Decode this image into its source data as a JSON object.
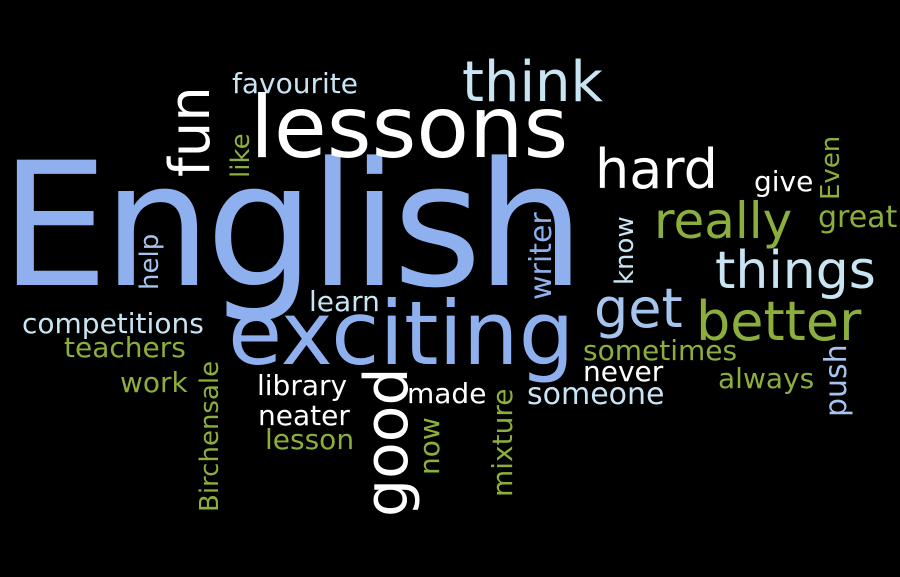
{
  "word_cloud": {
    "colors": {
      "background": "#000000",
      "blue": "#8fb0ee",
      "white": "#ffffff",
      "green": "#8cae3c",
      "ice": "#c9e4f2",
      "lite": "#a6c4ee"
    },
    "words": {
      "english": "English",
      "lessons": "lessons",
      "think": "think",
      "favourite": "favourite",
      "fun": "fun",
      "like": "like",
      "hard": "hard",
      "give": "give",
      "even": "Even",
      "know": "know",
      "really": "really",
      "great": "great",
      "things": "things",
      "get": "get",
      "better": "better",
      "help": "help",
      "writer": "writer",
      "learn": "learn",
      "exciting": "exciting",
      "competitions": "competitions",
      "teachers": "teachers",
      "birchensale": "Birchensale",
      "work": "work",
      "sometimes": "sometimes",
      "never": "never",
      "always": "always",
      "push": "push",
      "library": "library",
      "made": "made",
      "someone": "someone",
      "good": "good",
      "neater": "neater",
      "now": "now",
      "lesson": "lesson",
      "mixture": "mixture"
    }
  }
}
